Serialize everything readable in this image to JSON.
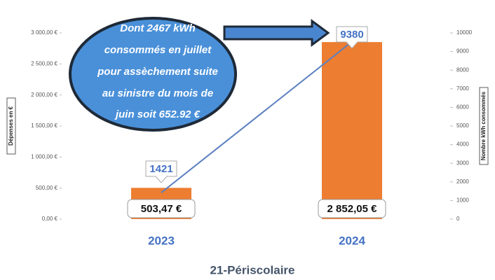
{
  "chart_data": {
    "type": "bar",
    "title": "21-Périscolaire",
    "y_axis_label": "Dépenses en €",
    "y2_axis_label": "Nombre kWh consommés",
    "categories": [
      "2023",
      "2024"
    ],
    "series": [
      {
        "color": "#ed7d31",
        "values": [
          503.47,
          2852.05
        ],
        "value_labels": [
          "503,47 €",
          "2 852,05 €"
        ]
      },
      {
        "color": "#5b7fc0",
        "values": [
          1421,
          9380
        ],
        "axis": "y2"
      }
    ],
    "ylim": [
      0,
      3000
    ],
    "yticks": [
      {
        "value": 0,
        "label": "0,00 €"
      },
      {
        "value": 500,
        "label": "500,00 €"
      },
      {
        "value": 1000,
        "label": "1 000,00 €"
      },
      {
        "value": 1500,
        "label": "1 500,00 €"
      },
      {
        "value": 2000,
        "label": "2 000,00 €"
      },
      {
        "value": 2500,
        "label": "2 500,00 €"
      },
      {
        "value": 3000,
        "label": "3 000,00 €"
      }
    ],
    "y2lim": [
      0,
      10000
    ],
    "y2ticks": [
      0,
      1000,
      2000,
      3000,
      4000,
      5000,
      6000,
      7000,
      8000,
      9000,
      10000
    ],
    "annotation": [
      "Dont 2467 kWh",
      "consommés en juillet",
      "pour assèchement suite",
      "au sinistre du mois de",
      "juin soit 652.92 €"
    ]
  }
}
